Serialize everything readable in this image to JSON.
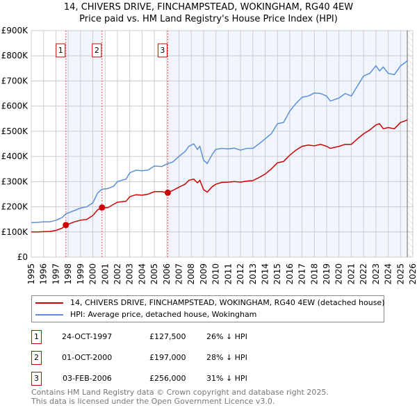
{
  "header": {
    "title": "14, CHIVERS DRIVE, FINCHAMPSTEAD, WOKINGHAM, RG40 4EW",
    "subtitle": "Price paid vs. HM Land Registry's House Price Index (HPI)"
  },
  "chart_data": {
    "type": "line",
    "title": "14, CHIVERS DRIVE, FINCHAMPSTEAD, WOKINGHAM, RG40 4EW",
    "subtitle": "Price paid vs. HM Land Registry's House Price Index (HPI)",
    "xlim": [
      1995,
      2026
    ],
    "ylim": [
      0,
      900000
    ],
    "x_ticks": [
      "1995",
      "1996",
      "1997",
      "1998",
      "1999",
      "2000",
      "2001",
      "2002",
      "2003",
      "2004",
      "2005",
      "2006",
      "2007",
      "2008",
      "2009",
      "2010",
      "2011",
      "2012",
      "2013",
      "2014",
      "2015",
      "2016",
      "2017",
      "2018",
      "2019",
      "2020",
      "2021",
      "2022",
      "2023",
      "2024",
      "2025",
      "2026"
    ],
    "y_ticks": [
      {
        "v": 0,
        "label": "£0"
      },
      {
        "v": 100000,
        "label": "£100K"
      },
      {
        "v": 200000,
        "label": "£200K"
      },
      {
        "v": 300000,
        "label": "£300K"
      },
      {
        "v": 400000,
        "label": "£400K"
      },
      {
        "v": 500000,
        "label": "£500K"
      },
      {
        "v": 600000,
        "label": "£600K"
      },
      {
        "v": 700000,
        "label": "£700K"
      },
      {
        "v": 800000,
        "label": "£800K"
      },
      {
        "v": 900000,
        "label": "£900K"
      }
    ],
    "grid": true,
    "series": [
      {
        "name": "14, CHIVERS DRIVE, FINCHAMPSTEAD, WOKINGHAM, RG40 4EW (detached house)",
        "color": "#cc0000",
        "x": [
          1995,
          1995.5,
          1996,
          1996.5,
          1997,
          1997.5,
          1997.81,
          1998.5,
          1999,
          1999.5,
          2000,
          2000.4,
          2000.75,
          2001.2,
          2001.7,
          2002,
          2002.7,
          2003,
          2003.5,
          2004,
          2004.5,
          2005,
          2005.6,
          2006.09,
          2006.5,
          2007,
          2007.5,
          2007.8,
          2008.2,
          2008.5,
          2008.7,
          2009,
          2009.3,
          2009.7,
          2010,
          2010.5,
          2011,
          2011.5,
          2012,
          2012.5,
          2013,
          2013.5,
          2014,
          2014.5,
          2015,
          2015.5,
          2016,
          2016.5,
          2017,
          2017.5,
          2018,
          2018.5,
          2019,
          2019.3,
          2020,
          2020.5,
          2021,
          2021.5,
          2022,
          2022.5,
          2023,
          2023.3,
          2023.6,
          2024,
          2024.5,
          2025,
          2025.3,
          2025.55
        ],
        "y": [
          100000,
          100000,
          101000,
          102000,
          106000,
          115000,
          127500,
          140000,
          147000,
          150000,
          165000,
          188000,
          197000,
          196000,
          210000,
          218000,
          222000,
          240000,
          248000,
          246000,
          250000,
          260000,
          260000,
          256000,
          265000,
          278000,
          290000,
          305000,
          310000,
          295000,
          305000,
          268000,
          258000,
          280000,
          290000,
          297000,
          298000,
          300000,
          298000,
          302000,
          304000,
          316000,
          330000,
          350000,
          375000,
          380000,
          405000,
          425000,
          440000,
          445000,
          442000,
          448000,
          440000,
          432000,
          440000,
          448000,
          448000,
          470000,
          490000,
          505000,
          525000,
          530000,
          510000,
          515000,
          510000,
          535000,
          540000,
          545000
        ]
      },
      {
        "name": "HPI: Average price, detached house, Wokingham",
        "color": "#5b8fd6",
        "x": [
          1995,
          1995.5,
          1996,
          1996.5,
          1997,
          1997.5,
          1997.81,
          1998.5,
          1999,
          1999.5,
          2000,
          2000.4,
          2000.75,
          2001.2,
          2001.7,
          2002,
          2002.7,
          2003,
          2003.5,
          2004,
          2004.5,
          2005,
          2005.6,
          2006.09,
          2006.5,
          2007,
          2007.5,
          2007.8,
          2008.2,
          2008.5,
          2008.7,
          2009,
          2009.3,
          2009.7,
          2010,
          2010.5,
          2011,
          2011.5,
          2012,
          2012.5,
          2013,
          2013.5,
          2014,
          2014.5,
          2015,
          2015.5,
          2016,
          2016.5,
          2017,
          2017.5,
          2018,
          2018.5,
          2019,
          2019.3,
          2020,
          2020.5,
          2021,
          2021.5,
          2022,
          2022.5,
          2023,
          2023.3,
          2023.6,
          2024,
          2024.5,
          2025,
          2025.3,
          2025.55
        ],
        "y": [
          137000,
          138000,
          140000,
          140000,
          146000,
          157000,
          172000,
          185000,
          195000,
          200000,
          215000,
          255000,
          270000,
          272000,
          282000,
          300000,
          310000,
          335000,
          345000,
          343000,
          346000,
          362000,
          360000,
          372000,
          378000,
          400000,
          420000,
          440000,
          450000,
          428000,
          440000,
          385000,
          372000,
          408000,
          428000,
          432000,
          430000,
          433000,
          425000,
          432000,
          432000,
          450000,
          470000,
          490000,
          530000,
          535000,
          580000,
          610000,
          635000,
          640000,
          652000,
          650000,
          640000,
          620000,
          632000,
          650000,
          640000,
          680000,
          720000,
          730000,
          760000,
          740000,
          755000,
          730000,
          725000,
          760000,
          770000,
          780000
        ]
      }
    ],
    "sales": [
      {
        "n": "1",
        "x": 1997.81,
        "y": 127500
      },
      {
        "n": "2",
        "x": 2000.75,
        "y": 197000
      },
      {
        "n": "3",
        "x": 2006.09,
        "y": 256000
      }
    ],
    "forecast_start": 2025.55,
    "legend_position": "below"
  },
  "legend": {
    "items": [
      {
        "label": "14, CHIVERS DRIVE, FINCHAMPSTEAD, WOKINGHAM, RG40 4EW (detached house)",
        "color": "#cc0000"
      },
      {
        "label": "HPI: Average price, detached house, Wokingham",
        "color": "#5b8fd6"
      }
    ]
  },
  "sales_table": [
    {
      "n": "1",
      "date": "24-OCT-1997",
      "price": "£127,500",
      "diff": "26% ↓ HPI"
    },
    {
      "n": "2",
      "date": "01-OCT-2000",
      "price": "£197,000",
      "diff": "28% ↓ HPI"
    },
    {
      "n": "3",
      "date": "03-FEB-2006",
      "price": "£256,000",
      "diff": "31% ↓ HPI"
    }
  ],
  "footer": {
    "line1": "Contains HM Land Registry data © Crown copyright and database right 2025.",
    "line2": "This data is licensed under the Open Government Licence v3.0."
  }
}
